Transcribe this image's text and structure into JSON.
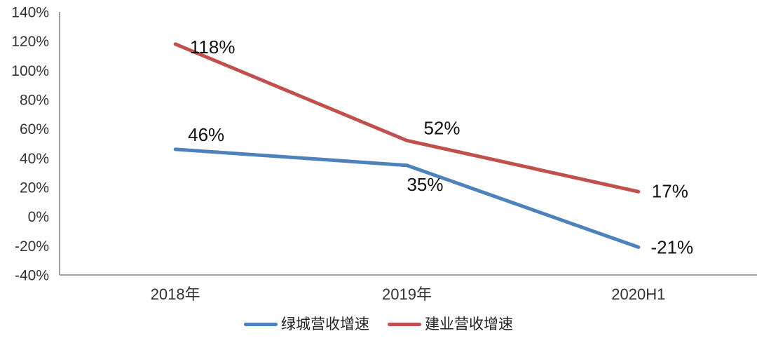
{
  "chart_data": {
    "type": "line",
    "title": "",
    "xlabel": "",
    "ylabel": "",
    "categories": [
      "2018年",
      "2019年",
      "2020H1"
    ],
    "series": [
      {
        "name": "绿城营收增速",
        "values": [
          46,
          35,
          -21
        ],
        "data_labels": [
          "46%",
          "35%",
          "-21%"
        ],
        "color": "#4F81BD",
        "label_offsets": [
          [
            44,
            -12
          ],
          [
            26,
            36
          ],
          [
            48,
            9
          ]
        ]
      },
      {
        "name": "建业营收增速",
        "values": [
          118,
          52,
          17
        ],
        "data_labels": [
          "118%",
          "52%",
          "17%"
        ],
        "color": "#C0504D",
        "label_offsets": [
          [
            53,
            13
          ],
          [
            50,
            -9
          ],
          [
            45,
            8
          ]
        ]
      }
    ],
    "ylim": [
      -40,
      140
    ],
    "y_tick_step": 20,
    "y_tick_labels": [
      "140%",
      "120%",
      "100%",
      "80%",
      "60%",
      "40%",
      "20%",
      "0%",
      "-20%",
      "-40%"
    ],
    "grid": false,
    "legend_position": "bottom",
    "axis_color": "#a0a0a0",
    "tick_label_color": "#333333",
    "data_label_color": "#111111",
    "background_color": "#ffffff",
    "line_width": 5
  }
}
